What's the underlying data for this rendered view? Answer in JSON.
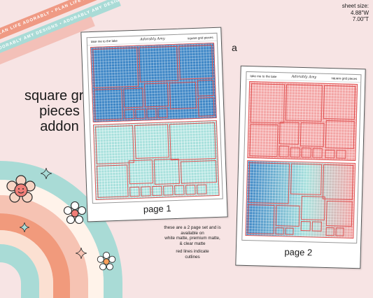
{
  "ribbons": {
    "top": "PLAN LIFE ADORABLY • PLAN LIFE ADORABLY • PLAN LIFE",
    "middle": "ADORABLY AMY DESIGNS • ADORABLY AMY DESIGNS •",
    "bottom": ""
  },
  "title": {
    "line1": "square grid",
    "line2": "pieces",
    "line3": "addon"
  },
  "sheet_size": {
    "label": "sheet size:",
    "width": "4.88\"W",
    "height": "7.00\"T"
  },
  "variant_letter": "a",
  "page1": {
    "header_left": "take me to the lake",
    "header_logo": "Adorably Amy",
    "header_right": "square grid pieces",
    "label": "page 1"
  },
  "page2": {
    "header_left": "take me to the lake",
    "header_logo": "Adorably Amy",
    "header_right": "square grid pieces",
    "label": "page 2"
  },
  "note": {
    "line1": "these are a 2 page set and is",
    "line2": "available on",
    "line3": "white matte, premium matte,",
    "line4": "& clear matte",
    "line5": "red lines indicate",
    "line6": "cutlines"
  },
  "colors": {
    "background": "#f7e4e4",
    "blue": "#3d86c6",
    "teal": "#a6e0dc",
    "pink": "#f3a4a4",
    "cutline": "#e05555",
    "rainbow_teal": "#a9dbd6",
    "rainbow_peach": "#f6c3b3",
    "rainbow_orange": "#f19a7c"
  }
}
